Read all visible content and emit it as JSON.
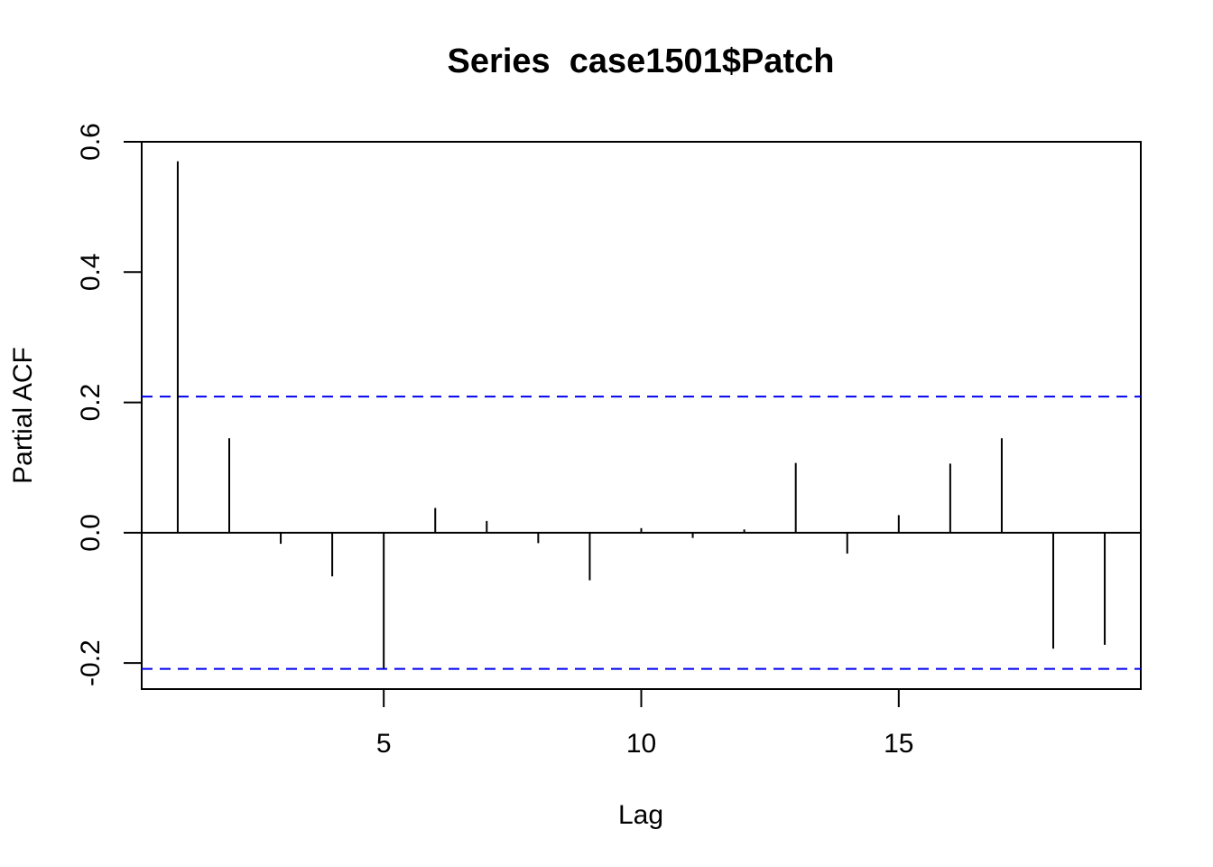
{
  "chart_data": {
    "type": "bar",
    "title": "Series  case1501$Patch",
    "xlabel": "Lag",
    "ylabel": "Partial ACF",
    "x_ticks": [
      5,
      10,
      15
    ],
    "y_ticks": [
      -0.2,
      0.0,
      0.2,
      0.4,
      0.6
    ],
    "y_tick_labels": [
      "-0.2",
      "0.0",
      "0.2",
      "0.4",
      "0.6"
    ],
    "xlim": [
      0.3,
      19.7
    ],
    "ylim": [
      -0.24,
      0.6
    ],
    "confidence_bound": 0.209,
    "confidence_color": "#0000ee",
    "lags": [
      1,
      2,
      3,
      4,
      5,
      6,
      7,
      8,
      9,
      10,
      11,
      12,
      13,
      14,
      15,
      16,
      17,
      18,
      19
    ],
    "values": [
      0.57,
      0.145,
      -0.017,
      -0.067,
      -0.208,
      0.038,
      0.018,
      -0.016,
      -0.073,
      0.007,
      -0.008,
      0.005,
      0.107,
      -0.032,
      0.027,
      0.106,
      0.145,
      -0.178,
      -0.172
    ]
  }
}
